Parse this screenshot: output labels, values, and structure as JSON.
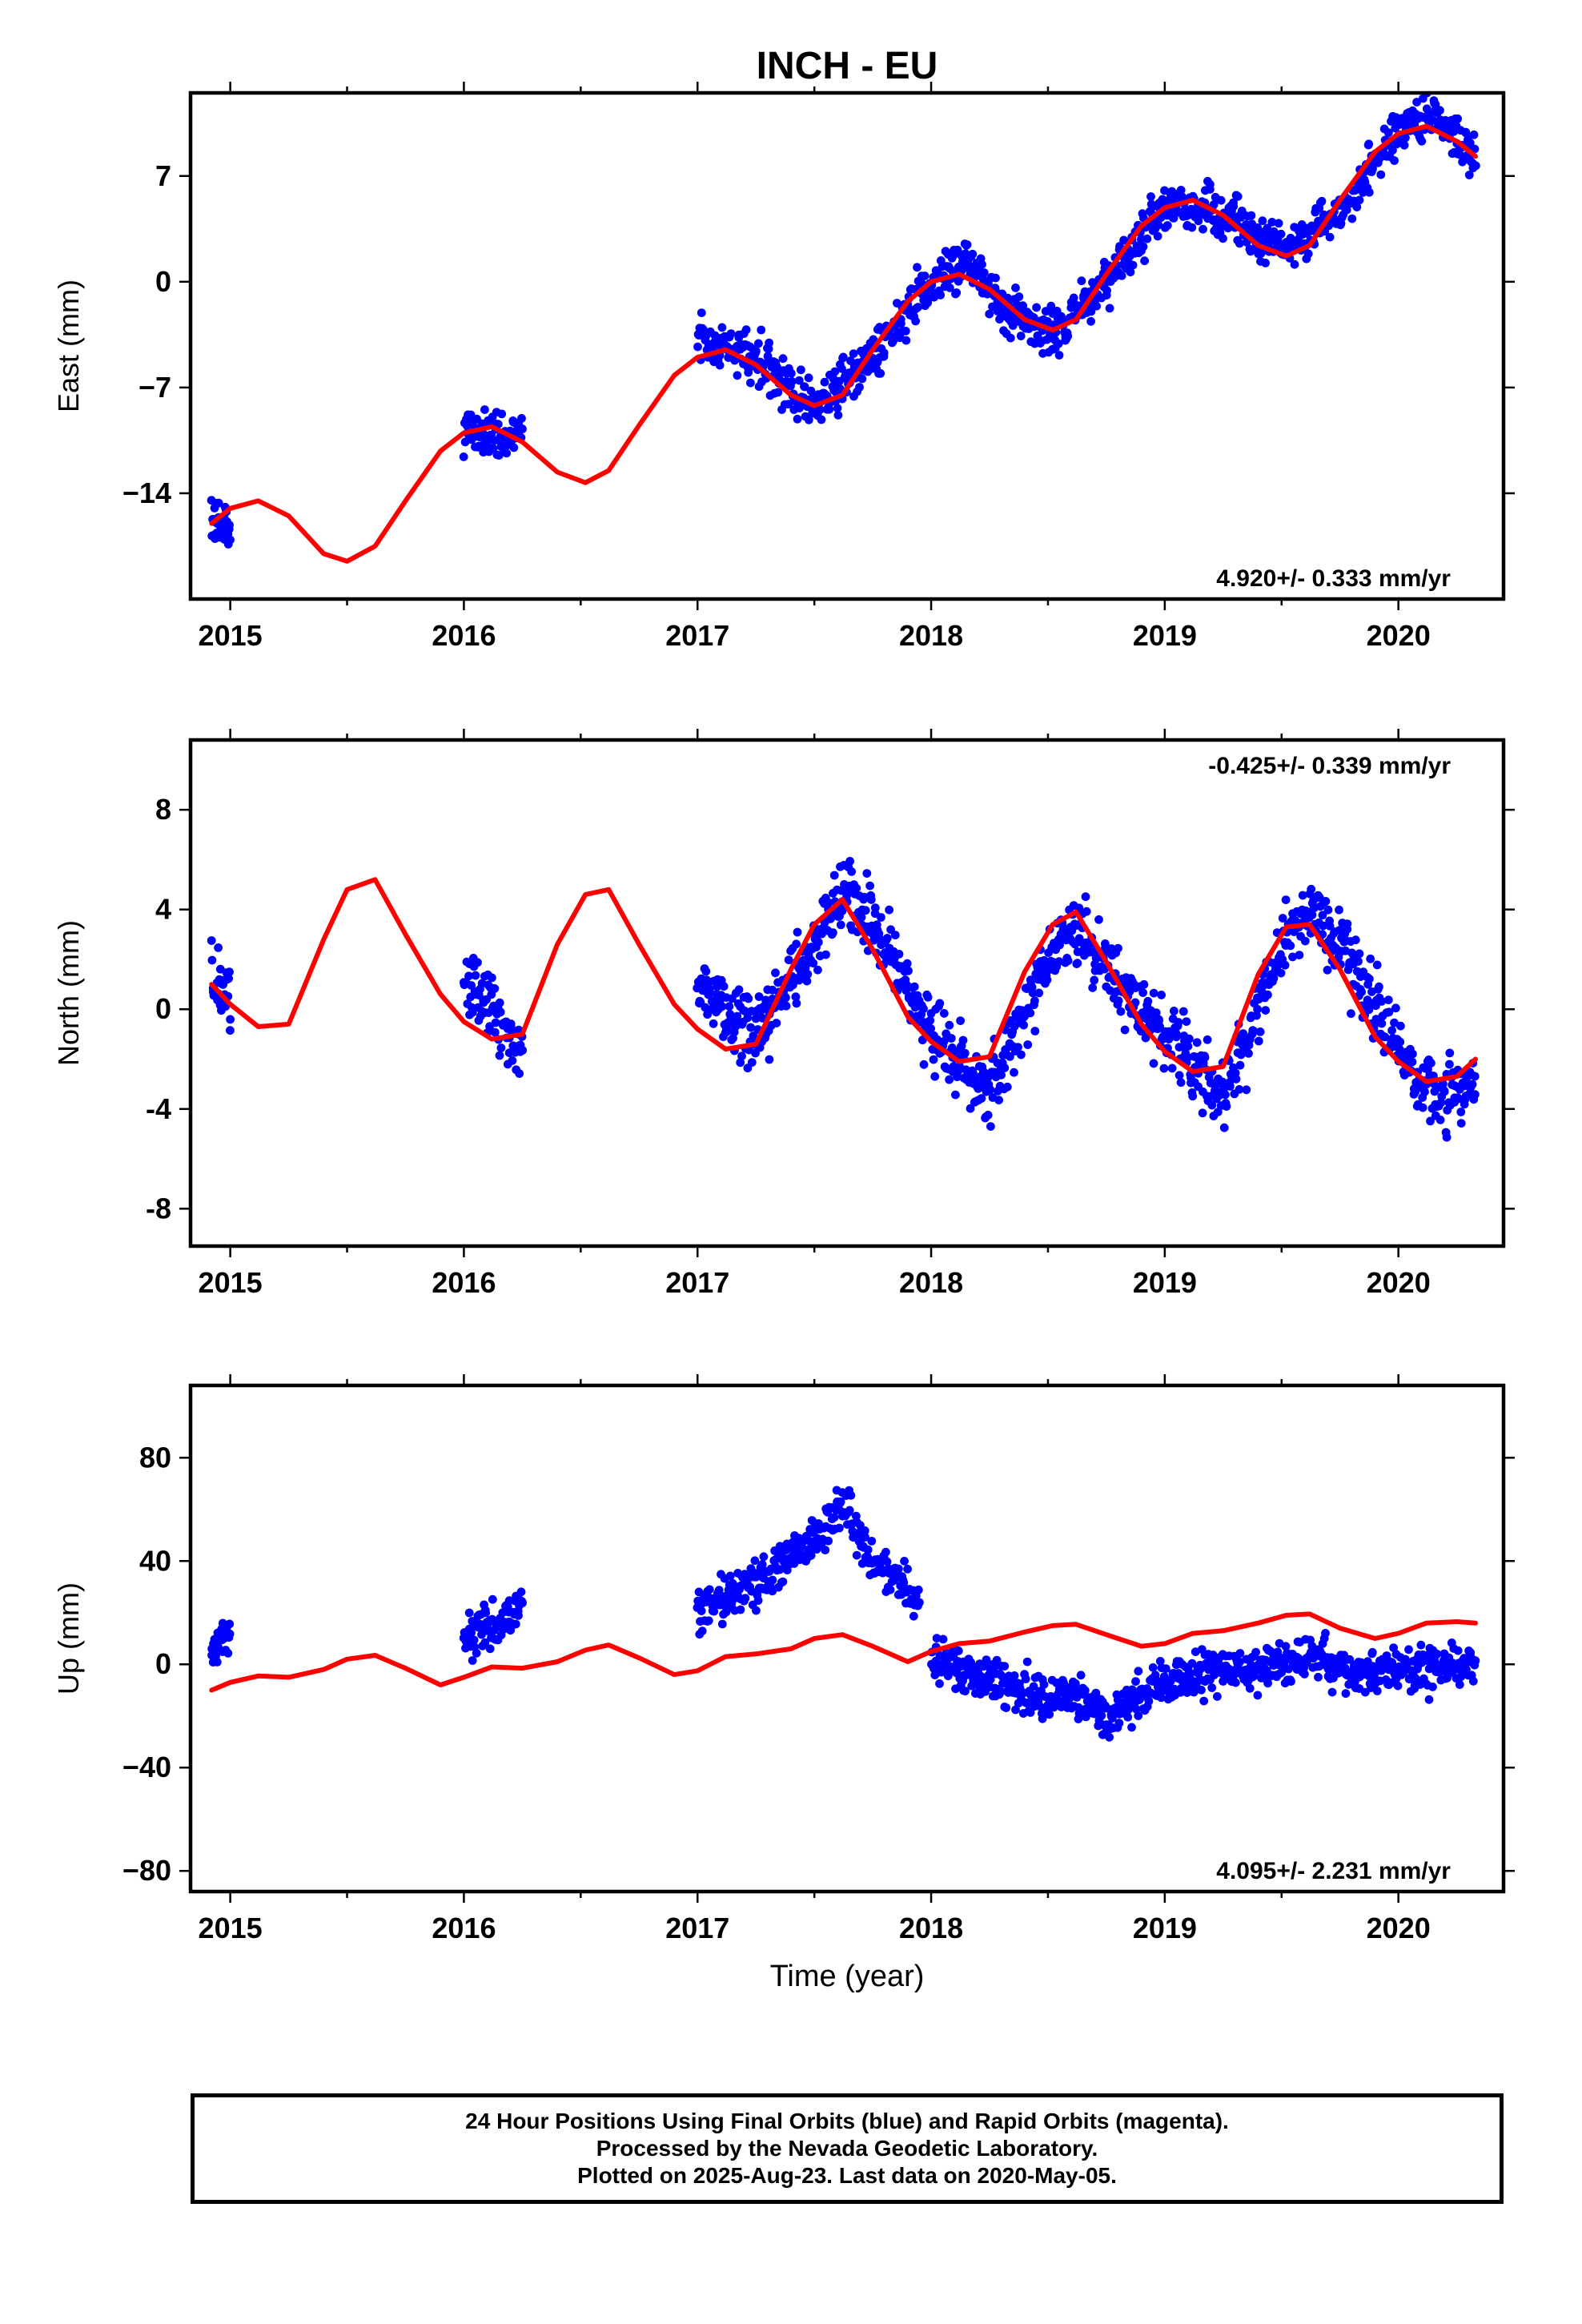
{
  "title": "INCH - EU",
  "chart_data": [
    {
      "type": "scatter",
      "ylabel": "East (mm)",
      "xlabel": "",
      "xlim": [
        2014.83,
        2020.45
      ],
      "ylim": [
        -21.0,
        12.5
      ],
      "yticks": [
        7,
        0,
        -7,
        -14
      ],
      "ytick_labels": [
        "7",
        "0",
        "−7",
        "−14"
      ],
      "xticks": [
        2015,
        2016,
        2017,
        2018,
        2019,
        2020
      ],
      "xtick_labels": [
        "2015",
        "2016",
        "2017",
        "2018",
        "2019",
        "2020"
      ],
      "rate_label": "4.920+/- 0.333 mm/yr",
      "rate_position": "bottom-right",
      "grid": false,
      "series": [
        {
          "name": "Final Orbits (blue)",
          "color": "#0000ff",
          "style": "points",
          "segments": [
            {
              "x": [
                2014.92,
                2015.0
              ],
              "y": [
                -15.5,
                -16.5
              ]
            },
            {
              "x": [
                2016.0,
                2016.25
              ],
              "y": [
                -10.0,
                -10.0
              ]
            },
            {
              "x": [
                2017.0,
                2017.25,
                2017.5,
                2017.75,
                2018.0,
                2018.15,
                2018.3,
                2018.5,
                2018.75,
                2019.0,
                2019.25,
                2019.5,
                2019.75,
                2020.0,
                2020.15,
                2020.33
              ],
              "y": [
                -3.8,
                -5.0,
                -8.5,
                -5.0,
                0.0,
                1.5,
                -1.5,
                -3.8,
                0.0,
                5.0,
                4.5,
                2.2,
                4.5,
                10.0,
                11.0,
                8.5
              ]
            }
          ],
          "spread": 1.3
        },
        {
          "name": "model",
          "color": "#ff0000",
          "style": "line",
          "x": [
            2014.92,
            2015.0,
            2015.12,
            2015.25,
            2015.4,
            2015.5,
            2015.62,
            2015.75,
            2015.9,
            2016.0,
            2016.12,
            2016.25,
            2016.4,
            2016.52,
            2016.62,
            2016.75,
            2016.9,
            2017.0,
            2017.12,
            2017.25,
            2017.4,
            2017.5,
            2017.62,
            2017.75,
            2017.9,
            2018.0,
            2018.12,
            2018.25,
            2018.4,
            2018.52,
            2018.62,
            2018.75,
            2018.9,
            2019.0,
            2019.12,
            2019.25,
            2019.4,
            2019.52,
            2019.62,
            2019.75,
            2019.9,
            2020.0,
            2020.12,
            2020.25,
            2020.33
          ],
          "y": [
            -16.0,
            -15.0,
            -14.5,
            -15.5,
            -18.0,
            -18.5,
            -17.5,
            -14.5,
            -11.2,
            -10.0,
            -9.6,
            -10.6,
            -12.6,
            -13.3,
            -12.5,
            -9.5,
            -6.2,
            -5.0,
            -4.5,
            -5.5,
            -7.5,
            -8.2,
            -7.5,
            -4.5,
            -1.3,
            0.0,
            0.5,
            -0.5,
            -2.5,
            -3.2,
            -2.5,
            0.5,
            3.7,
            4.9,
            5.4,
            4.4,
            2.4,
            1.7,
            2.4,
            5.4,
            8.6,
            9.8,
            10.3,
            9.3,
            8.3
          ]
        }
      ]
    },
    {
      "type": "scatter",
      "ylabel": "North (mm)",
      "xlabel": "",
      "xlim": [
        2014.83,
        2020.45
      ],
      "ylim": [
        -9.5,
        10.8
      ],
      "yticks": [
        8,
        4,
        0,
        -4,
        -8
      ],
      "ytick_labels": [
        "8",
        "4",
        "0",
        "-4",
        "-8"
      ],
      "xticks": [
        2015,
        2016,
        2017,
        2018,
        2019,
        2020
      ],
      "xtick_labels": [
        "2015",
        "2016",
        "2017",
        "2018",
        "2019",
        "2020"
      ],
      "rate_label": "-0.425+/- 0.339 mm/yr",
      "rate_position": "top-right",
      "grid": false,
      "series": [
        {
          "name": "Final Orbits (blue)",
          "color": "#0000ff",
          "style": "points",
          "segments": [
            {
              "x": [
                2014.92,
                2015.0
              ],
              "y": [
                1.5,
                0.5
              ]
            },
            {
              "x": [
                2016.0,
                2016.12,
                2016.25
              ],
              "y": [
                1.0,
                0.0,
                -1.5
              ]
            },
            {
              "x": [
                2017.0,
                2017.25,
                2017.5,
                2017.62,
                2017.75,
                2018.0,
                2018.25,
                2018.5,
                2018.62,
                2018.75,
                2019.0,
                2019.25,
                2019.5,
                2019.62,
                2019.75,
                2020.0,
                2020.15,
                2020.33
              ],
              "y": [
                1.0,
                -1.0,
                2.5,
                5.0,
                3.5,
                -1.0,
                -3.5,
                2.0,
                3.0,
                1.5,
                -1.0,
                -3.5,
                2.5,
                4.0,
                2.5,
                -1.5,
                -3.5,
                -3.0
              ]
            }
          ],
          "spread": 1.2
        },
        {
          "name": "model",
          "color": "#ff0000",
          "style": "line",
          "x": [
            2014.92,
            2015.0,
            2015.12,
            2015.25,
            2015.4,
            2015.5,
            2015.62,
            2015.75,
            2015.9,
            2016.0,
            2016.12,
            2016.25,
            2016.4,
            2016.52,
            2016.62,
            2016.75,
            2016.9,
            2017.0,
            2017.12,
            2017.25,
            2017.4,
            2017.5,
            2017.62,
            2017.75,
            2017.9,
            2018.0,
            2018.12,
            2018.25,
            2018.4,
            2018.52,
            2018.62,
            2018.75,
            2018.9,
            2019.0,
            2019.12,
            2019.25,
            2019.4,
            2019.52,
            2019.62,
            2019.75,
            2019.9,
            2020.0,
            2020.12,
            2020.25,
            2020.33
          ],
          "y": [
            1.0,
            0.2,
            -0.7,
            -0.6,
            2.8,
            4.8,
            5.2,
            3.0,
            0.6,
            -0.5,
            -1.2,
            -1.0,
            2.6,
            4.6,
            4.8,
            2.6,
            0.2,
            -0.8,
            -1.6,
            -1.4,
            1.6,
            3.4,
            4.4,
            2.4,
            -0.3,
            -1.3,
            -2.1,
            -1.9,
            1.5,
            3.4,
            3.9,
            1.9,
            -0.6,
            -1.7,
            -2.5,
            -2.3,
            1.4,
            3.3,
            3.4,
            1.6,
            -1.1,
            -2.1,
            -2.9,
            -2.7,
            -2.0
          ]
        }
      ]
    },
    {
      "type": "scatter",
      "ylabel": "Up (mm)",
      "xlabel": "Time (year)",
      "xlim": [
        2014.83,
        2020.45
      ],
      "ylim": [
        -88,
        108
      ],
      "yticks": [
        80,
        40,
        0,
        -40,
        -80
      ],
      "ytick_labels": [
        "80",
        "40",
        "0",
        "−40",
        "−80"
      ],
      "xticks": [
        2015,
        2016,
        2017,
        2018,
        2019,
        2020
      ],
      "xtick_labels": [
        "2015",
        "2016",
        "2017",
        "2018",
        "2019",
        "2020"
      ],
      "rate_label": "4.095+/- 2.231 mm/yr",
      "rate_position": "bottom-right",
      "grid": false,
      "series": [
        {
          "name": "Final Orbits (blue)",
          "color": "#0000ff",
          "style": "points",
          "segments": [
            {
              "x": [
                2014.92,
                2015.0
              ],
              "y": [
                5.0,
                12.0
              ]
            },
            {
              "x": [
                2016.0,
                2016.12,
                2016.25
              ],
              "y": [
                10.0,
                15.0,
                22.0
              ]
            },
            {
              "x": [
                2017.0,
                2017.25,
                2017.5,
                2017.62,
                2017.75,
                2017.95
              ],
              "y": [
                20.0,
                32.0,
                48.0,
                62.0,
                40.0,
                25.0
              ]
            },
            {
              "x": [
                2018.0,
                2018.25,
                2018.5,
                2018.62,
                2018.75,
                2019.0,
                2019.25,
                2019.5,
                2019.62,
                2019.75,
                2020.0,
                2020.33
              ],
              "y": [
                2.0,
                -5.0,
                -15.0,
                -12.0,
                -20.0,
                -8.0,
                -2.0,
                0.0,
                5.0,
                -3.0,
                -2.0,
                0.0
              ]
            }
          ],
          "spread": 7.0
        },
        {
          "name": "model",
          "color": "#ff0000",
          "style": "line",
          "x": [
            2014.92,
            2015.0,
            2015.12,
            2015.25,
            2015.4,
            2015.5,
            2015.62,
            2015.75,
            2015.9,
            2016.0,
            2016.12,
            2016.25,
            2016.4,
            2016.52,
            2016.62,
            2016.75,
            2016.9,
            2017.0,
            2017.12,
            2017.25,
            2017.4,
            2017.5,
            2017.62,
            2017.75,
            2017.9,
            2018.0,
            2018.12,
            2018.25,
            2018.4,
            2018.52,
            2018.62,
            2018.75,
            2018.9,
            2019.0,
            2019.12,
            2019.25,
            2019.4,
            2019.52,
            2019.62,
            2019.75,
            2019.9,
            2020.0,
            2020.12,
            2020.25,
            2020.33
          ],
          "y": [
            -10.0,
            -7.0,
            -4.5,
            -5.0,
            -2.0,
            2.0,
            3.5,
            -1.5,
            -8.0,
            -5.0,
            -1.0,
            -1.5,
            1.0,
            5.5,
            7.5,
            2.5,
            -4.0,
            -2.5,
            3.0,
            4.0,
            6.0,
            10.0,
            11.5,
            7.0,
            1.0,
            5.0,
            8.0,
            9.0,
            12.5,
            15.0,
            15.5,
            11.5,
            7.0,
            8.0,
            12.0,
            13.0,
            16.0,
            19.0,
            19.5,
            14.0,
            10.0,
            12.0,
            16.0,
            16.5,
            16.0
          ]
        }
      ]
    }
  ],
  "footer": {
    "line1": "24 Hour Positions Using Final Orbits (blue) and Rapid Orbits (magenta).",
    "line2": "Processed by the Nevada Geodetic Laboratory.",
    "line3": "Plotted on 2025-Aug-23. Last data on 2020-May-05."
  }
}
